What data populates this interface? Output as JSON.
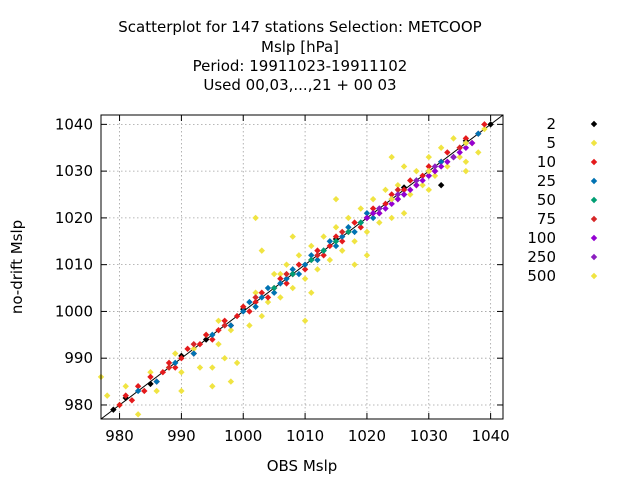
{
  "chart_data": {
    "type": "scatter",
    "title_lines": [
      "Scatterplot for  147 stations Selection: METCOOP",
      "Mslp [hPa]",
      "Period: 19911023-19911102",
      "Used  00,03,...,21  + 00 03"
    ],
    "xlabel": "OBS Mslp",
    "ylabel": "no-drift Mslp",
    "xlim": [
      977,
      1042
    ],
    "ylim": [
      977,
      1042
    ],
    "xticks": [
      980,
      990,
      1000,
      1010,
      1020,
      1030,
      1040
    ],
    "yticks": [
      980,
      990,
      1000,
      1010,
      1020,
      1030,
      1040
    ],
    "grid": true,
    "diagonal": true,
    "legend_placement": "right",
    "series": [
      {
        "name": "2",
        "color": "#000000",
        "points": [
          [
            979,
            979
          ],
          [
            981,
            981.5
          ],
          [
            985,
            984.5
          ],
          [
            990,
            990.5
          ],
          [
            994,
            994
          ],
          [
            1000,
            1000.5
          ],
          [
            1008,
            1008
          ],
          [
            1015,
            1015.5
          ],
          [
            1020,
            1020
          ],
          [
            1026,
            1026.5
          ],
          [
            1032,
            1027
          ],
          [
            1036,
            1036.5
          ],
          [
            1040,
            1040
          ]
        ]
      },
      {
        "name": "5",
        "color": "#f0e442",
        "points": [
          [
            977,
            986
          ],
          [
            978,
            982
          ],
          [
            980,
            980
          ],
          [
            981,
            984
          ],
          [
            983,
            978
          ],
          [
            985,
            987
          ],
          [
            986,
            983
          ],
          [
            988,
            988
          ],
          [
            989,
            991
          ],
          [
            990,
            987
          ],
          [
            992,
            992
          ],
          [
            993,
            988
          ],
          [
            994,
            995
          ],
          [
            995,
            984
          ],
          [
            996,
            993
          ],
          [
            996,
            998
          ],
          [
            997,
            990
          ],
          [
            998,
            996
          ],
          [
            999,
            989
          ],
          [
            1000,
            1001
          ],
          [
            1001,
            997
          ],
          [
            1002,
            1004
          ],
          [
            1003,
            999
          ],
          [
            1003,
            1013
          ],
          [
            1004,
            1002
          ],
          [
            1005,
            1008
          ],
          [
            1006,
            1003
          ],
          [
            1007,
            1010
          ],
          [
            1008,
            1005
          ],
          [
            1009,
            1012
          ],
          [
            1010,
            1007
          ],
          [
            1010,
            998
          ],
          [
            1011,
            1014
          ],
          [
            1012,
            1009
          ],
          [
            1013,
            1016
          ],
          [
            1014,
            1011
          ],
          [
            1015,
            1018
          ],
          [
            1016,
            1013
          ],
          [
            1017,
            1020
          ],
          [
            1018,
            1015
          ],
          [
            1019,
            1022
          ],
          [
            1020,
            1017
          ],
          [
            1021,
            1024
          ],
          [
            1022,
            1019
          ],
          [
            1023,
            1026
          ],
          [
            1024,
            1020
          ],
          [
            1024,
            1033
          ],
          [
            1025,
            1027
          ],
          [
            1026,
            1021
          ],
          [
            1026,
            1031
          ],
          [
            1027,
            1025
          ],
          [
            1028,
            1030
          ],
          [
            1029,
            1027
          ],
          [
            1030,
            1033
          ],
          [
            1031,
            1029
          ],
          [
            1032,
            1035
          ],
          [
            1033,
            1031
          ],
          [
            1034,
            1037
          ],
          [
            1035,
            1033
          ],
          [
            1036,
            1032
          ],
          [
            1037,
            1036
          ],
          [
            1038,
            1034
          ],
          [
            1039,
            1039
          ],
          [
            1002,
            1020
          ],
          [
            1008,
            1016
          ],
          [
            1011,
            1004
          ],
          [
            1015,
            1024
          ],
          [
            1020,
            1012
          ],
          [
            1030,
            1026
          ],
          [
            1036,
            1030
          ],
          [
            995,
            988
          ],
          [
            998,
            985
          ],
          [
            990,
            983
          ],
          [
            1006,
            1008
          ],
          [
            1018,
            1010
          ]
        ]
      },
      {
        "name": "10",
        "color": "#e41a1c",
        "points": [
          [
            980,
            980
          ],
          [
            981,
            982
          ],
          [
            982,
            981
          ],
          [
            983,
            984
          ],
          [
            984,
            983
          ],
          [
            985,
            986
          ],
          [
            986,
            985
          ],
          [
            987,
            987
          ],
          [
            988,
            989
          ],
          [
            989,
            988
          ],
          [
            990,
            990
          ],
          [
            991,
            992
          ],
          [
            992,
            991
          ],
          [
            993,
            993
          ],
          [
            994,
            995
          ],
          [
            995,
            994
          ],
          [
            996,
            996
          ],
          [
            997,
            998
          ],
          [
            998,
            997
          ],
          [
            999,
            999
          ],
          [
            1000,
            1001
          ],
          [
            1001,
            1000
          ],
          [
            1002,
            1002
          ],
          [
            1003,
            1004
          ],
          [
            1004,
            1003
          ],
          [
            1005,
            1005
          ],
          [
            1006,
            1007
          ],
          [
            1007,
            1006
          ],
          [
            1008,
            1008
          ],
          [
            1009,
            1010
          ],
          [
            1010,
            1009
          ],
          [
            1011,
            1011
          ],
          [
            1012,
            1013
          ],
          [
            1013,
            1012
          ],
          [
            1014,
            1014
          ],
          [
            1015,
            1016
          ],
          [
            1016,
            1015
          ],
          [
            1017,
            1017
          ],
          [
            1018,
            1019
          ],
          [
            1019,
            1018
          ],
          [
            1020,
            1020
          ],
          [
            1021,
            1022
          ],
          [
            1022,
            1021
          ],
          [
            1023,
            1023
          ],
          [
            1024,
            1025
          ],
          [
            1025,
            1024
          ],
          [
            1026,
            1026
          ],
          [
            1027,
            1028
          ],
          [
            1028,
            1027
          ],
          [
            1029,
            1029
          ],
          [
            1030,
            1031
          ],
          [
            1031,
            1030
          ],
          [
            1032,
            1032
          ],
          [
            1033,
            1034
          ],
          [
            1034,
            1033
          ],
          [
            1035,
            1035
          ],
          [
            1036,
            1037
          ],
          [
            1037,
            1036
          ],
          [
            1038,
            1038
          ],
          [
            1039,
            1040
          ]
        ]
      },
      {
        "name": "25",
        "color": "#0072b2",
        "points": [
          [
            983,
            983
          ],
          [
            986,
            985
          ],
          [
            989,
            989
          ],
          [
            992,
            991
          ],
          [
            995,
            995
          ],
          [
            998,
            997
          ],
          [
            1000,
            1000
          ],
          [
            1001,
            1002
          ],
          [
            1002,
            1001
          ],
          [
            1003,
            1003
          ],
          [
            1004,
            1005
          ],
          [
            1005,
            1004
          ],
          [
            1006,
            1006
          ],
          [
            1007,
            1007
          ],
          [
            1008,
            1009
          ],
          [
            1009,
            1008
          ],
          [
            1010,
            1010
          ],
          [
            1011,
            1012
          ],
          [
            1012,
            1011
          ],
          [
            1013,
            1013
          ],
          [
            1014,
            1015
          ],
          [
            1015,
            1014
          ],
          [
            1016,
            1016
          ],
          [
            1017,
            1018
          ],
          [
            1018,
            1017
          ],
          [
            1019,
            1019
          ],
          [
            1020,
            1021
          ],
          [
            1021,
            1020
          ],
          [
            1022,
            1022
          ],
          [
            1024,
            1024
          ],
          [
            1026,
            1025
          ],
          [
            1028,
            1028
          ],
          [
            1030,
            1029
          ],
          [
            1032,
            1032
          ],
          [
            1034,
            1033
          ],
          [
            1036,
            1036
          ],
          [
            1038,
            1038
          ]
        ]
      },
      {
        "name": "50",
        "color": "#009e73",
        "points": [
          [
            1005,
            1005
          ],
          [
            1008,
            1008
          ],
          [
            1011,
            1011
          ],
          [
            1013,
            1013
          ],
          [
            1015,
            1015
          ],
          [
            1017,
            1017
          ],
          [
            1019,
            1019
          ]
        ]
      },
      {
        "name": "75",
        "color": "#d62728",
        "points": [
          [
            988,
            988
          ],
          [
            992,
            993
          ],
          [
            997,
            997
          ],
          [
            1002,
            1003
          ],
          [
            1007,
            1008
          ],
          [
            1012,
            1012
          ],
          [
            1016,
            1017
          ],
          [
            1021,
            1021
          ],
          [
            1025,
            1026
          ],
          [
            1030,
            1030
          ],
          [
            1035,
            1035
          ]
        ]
      },
      {
        "name": "100",
        "color": "#9400d3",
        "points": [
          [
            1020,
            1020
          ],
          [
            1021,
            1021
          ],
          [
            1022,
            1021
          ],
          [
            1023,
            1022
          ],
          [
            1024,
            1023
          ],
          [
            1025,
            1024
          ],
          [
            1026,
            1025
          ],
          [
            1027,
            1026
          ],
          [
            1028,
            1027
          ],
          [
            1029,
            1028
          ],
          [
            1030,
            1029
          ],
          [
            1031,
            1030
          ],
          [
            1032,
            1031
          ],
          [
            1033,
            1032
          ],
          [
            1034,
            1033
          ],
          [
            1035,
            1034
          ],
          [
            1036,
            1035
          ],
          [
            1037,
            1036
          ]
        ]
      },
      {
        "name": "250",
        "color": "#8b1fbf",
        "points": [
          [
            1022,
            1022
          ],
          [
            1025,
            1025
          ],
          [
            1028,
            1028
          ],
          [
            1031,
            1031
          ],
          [
            1034,
            1033
          ]
        ]
      },
      {
        "name": "500",
        "color": "#f0e442",
        "points": [
          [
            1024,
            1024
          ],
          [
            1030,
            1030
          ],
          [
            1036,
            1036
          ]
        ]
      }
    ]
  }
}
